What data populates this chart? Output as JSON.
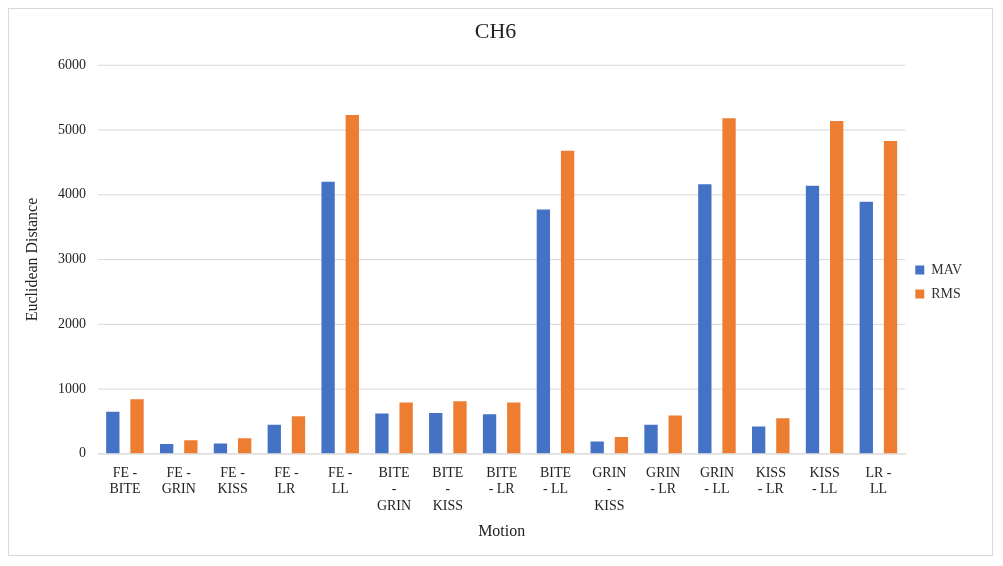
{
  "chart_data": {
    "type": "bar",
    "title": "CH6",
    "xlabel": "Motion",
    "ylabel": "Euclidean Distance",
    "categories": [
      "FE - BITE",
      "FE - GRIN",
      "FE - KISS",
      "FE - LR",
      "FE - LL",
      "BITE - GRIN",
      "BITE - KISS",
      "BITE - LR",
      "BITE - LL",
      "GRIN - KISS",
      "GRIN - LR",
      "GRIN - LL",
      "KISS - LR",
      "KISS - LL",
      "LR - LL"
    ],
    "series": [
      {
        "name": "MAV",
        "color": "#4472c4",
        "values": [
          650,
          150,
          160,
          450,
          4200,
          620,
          630,
          610,
          3770,
          190,
          450,
          4160,
          420,
          4140,
          3890
        ]
      },
      {
        "name": "RMS",
        "color": "#ed7d31",
        "values": [
          840,
          210,
          240,
          580,
          5230,
          790,
          810,
          790,
          4680,
          260,
          590,
          5180,
          550,
          5140,
          4830
        ]
      }
    ],
    "ylim": [
      0,
      6000
    ],
    "yticks": [
      0,
      1000,
      2000,
      3000,
      4000,
      5000,
      6000
    ],
    "grid": "y",
    "legend": "right"
  }
}
